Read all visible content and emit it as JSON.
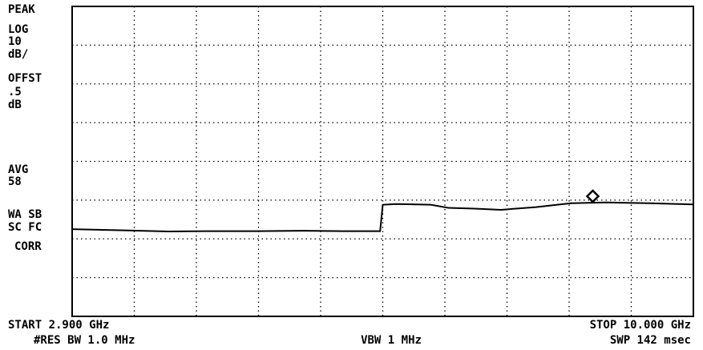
{
  "chart_data": {
    "type": "line",
    "side_labels": [
      "PEAK",
      "LOG",
      "10",
      "dB/",
      "OFFST",
      ".5",
      "dB",
      "AVG",
      "58",
      "WA SB",
      "SC FC",
      "CORR"
    ],
    "start_label": "START 2.900 GHz",
    "stop_label": "STOP 10.000 GHz",
    "res_bw_label": "#RES BW 1.0 MHz",
    "vbw_label": "VBW 1 MHz",
    "sweep_label": "SWP 142 msec",
    "xlim": [
      2.9,
      10
    ],
    "xticks": [
      2.9,
      3.61,
      4.32,
      5.03,
      5.74,
      6.45,
      7.16,
      7.87,
      8.58,
      9.29,
      10
    ],
    "ylim": [
      0,
      8
    ],
    "yticks": [
      0,
      1,
      2,
      3,
      4,
      5,
      6,
      7,
      8
    ],
    "grid": true,
    "series": [
      {
        "color": "#000000",
        "x": [
          2.9,
          3.5,
          4.0,
          4.5,
          5.0,
          5.5,
          6.0,
          6.42,
          6.45,
          6.6,
          7.0,
          7.2,
          7.5,
          7.8,
          8.2,
          8.6,
          9.0,
          9.5,
          10.0
        ],
        "values": [
          2.25,
          2.22,
          2.19,
          2.2,
          2.2,
          2.21,
          2.2,
          2.2,
          2.88,
          2.9,
          2.88,
          2.8,
          2.78,
          2.75,
          2.82,
          2.92,
          2.94,
          2.92,
          2.89
        ]
      }
    ],
    "marker": {
      "x": 8.85,
      "value": 3.1
    }
  }
}
